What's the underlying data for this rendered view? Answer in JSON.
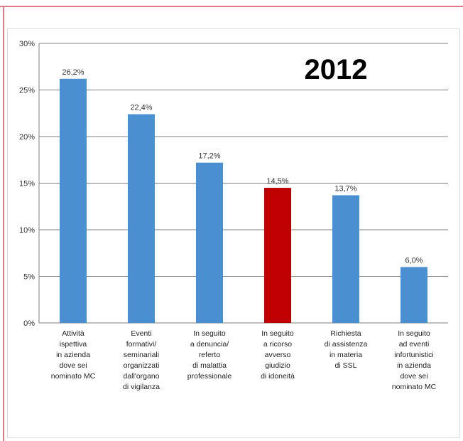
{
  "chart_data": {
    "type": "bar",
    "title": "2012",
    "xlabel": "",
    "ylabel": "",
    "ylim": [
      0,
      30
    ],
    "yticks": [
      "0%",
      "5%",
      "10%",
      "15%",
      "20%",
      "25%",
      "30%"
    ],
    "grid": true,
    "legend": "none",
    "categories": [
      [
        "Attività",
        "ispettiva",
        "in azienda",
        "dove sei",
        "nominato MC"
      ],
      [
        "Eventi",
        "formativi/",
        "seminariali",
        "organizzati",
        "dall'organo",
        "di vigilanza"
      ],
      [
        "In seguito",
        "a denuncia/",
        "referto",
        "di malattia",
        "professionale"
      ],
      [
        "In seguito",
        "a ricorso",
        "avverso",
        "giudizio",
        "di idoneità"
      ],
      [
        "Richiesta",
        "di assistenza",
        "in materia",
        "di SSL"
      ],
      [
        "In seguito",
        "ad eventi",
        "infortunistici",
        "in azienda",
        "dove sei",
        "nominato MC"
      ]
    ],
    "values": [
      26.2,
      22.4,
      17.2,
      14.5,
      13.7,
      6.0
    ],
    "data_labels": [
      "26,2%",
      "22,4%",
      "17,2%",
      "14,5%",
      "13,7%",
      "6,0%"
    ],
    "colors": {
      "bar": "#4a8fcf",
      "highlight": "#c00000",
      "grid": "#808080"
    },
    "highlight_index": 3
  }
}
